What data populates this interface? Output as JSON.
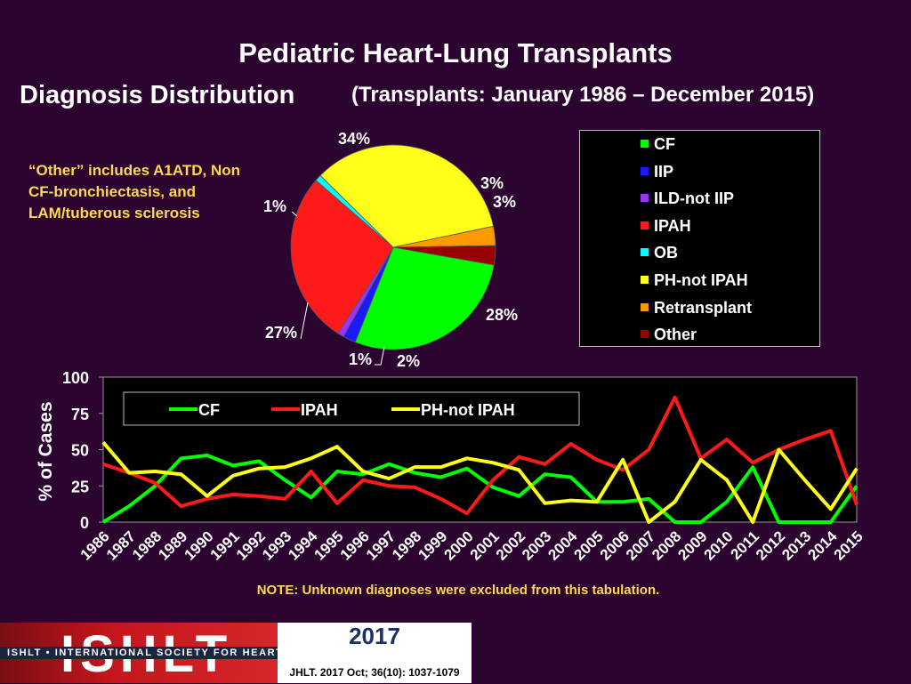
{
  "header": {
    "title": "Pediatric Heart-Lung Transplants",
    "subtitle_main": "Diagnosis Distribution",
    "subtitle_range": "(Transplants: January 1986 – December 2015)"
  },
  "other_note": "“Other” includes A1ATD, Non CF-bronchiectasis, and LAM/tuberous sclerosis",
  "footer": {
    "note": "NOTE: Unknown diagnoses were excluded from this tabulation.",
    "year": "2017",
    "citation": "JHLT. 2017 Oct; 36(10): 1037-1079",
    "logo_text": "ISHLT",
    "org_text": "ISHLT • INTERNATIONAL SOCIETY FOR HEART AND LUNG TRANSPLANTATION"
  },
  "chart_data": [
    {
      "type": "pie",
      "categories": [
        "CF",
        "IIP",
        "ILD-not IIP",
        "IPAH",
        "OB",
        "PH-not IPAH",
        "Retransplant",
        "Other"
      ],
      "values": [
        28,
        2,
        1,
        27,
        1,
        34,
        3,
        3
      ],
      "labels": [
        "28%",
        "2%",
        "1%",
        "27%",
        "1%",
        "34%",
        "3%",
        "3%"
      ],
      "colors": [
        "#00ff00",
        "#1a1aff",
        "#9933ff",
        "#ff1a1a",
        "#00ffff",
        "#ffff1a",
        "#ff9900",
        "#990000"
      ],
      "legend_position": "right"
    },
    {
      "type": "line",
      "x": [
        "1986",
        "1987",
        "1988",
        "1989",
        "1990",
        "1991",
        "1992",
        "1993",
        "1994",
        "1995",
        "1996",
        "1997",
        "1998",
        "1999",
        "2000",
        "2001",
        "2002",
        "2003",
        "2004",
        "2005",
        "2006",
        "2007",
        "2008",
        "2009",
        "2010",
        "2011",
        "2012",
        "2013",
        "2014",
        "2015"
      ],
      "series": [
        {
          "name": "CF",
          "color": "#00ff00",
          "values": [
            0,
            11,
            25,
            44,
            46,
            39,
            42,
            29,
            17,
            35,
            33,
            40,
            34,
            31,
            37,
            24,
            18,
            33,
            31,
            14,
            14,
            16,
            0,
            0,
            14,
            38,
            0,
            0,
            0,
            25
          ]
        },
        {
          "name": "IPAH",
          "color": "#ff1a1a",
          "values": [
            40,
            34,
            27,
            11,
            16,
            19,
            18,
            16,
            35,
            13,
            29,
            25,
            24,
            16,
            6,
            29,
            45,
            40,
            54,
            43,
            36,
            50,
            86,
            44,
            57,
            41,
            50,
            57,
            63,
            12
          ]
        },
        {
          "name": "PH-not IPAH",
          "color": "#ffff1a",
          "values": [
            55,
            34,
            35,
            33,
            18,
            32,
            37,
            38,
            44,
            52,
            35,
            30,
            38,
            38,
            44,
            41,
            36,
            13,
            15,
            14,
            43,
            0,
            14,
            43,
            29,
            0,
            50,
            29,
            9,
            37
          ]
        }
      ],
      "ylabel": "% of Cases",
      "ylim": [
        0,
        100
      ],
      "yticks": [
        0,
        25,
        50,
        75,
        100
      ],
      "legend_position": "top"
    }
  ]
}
